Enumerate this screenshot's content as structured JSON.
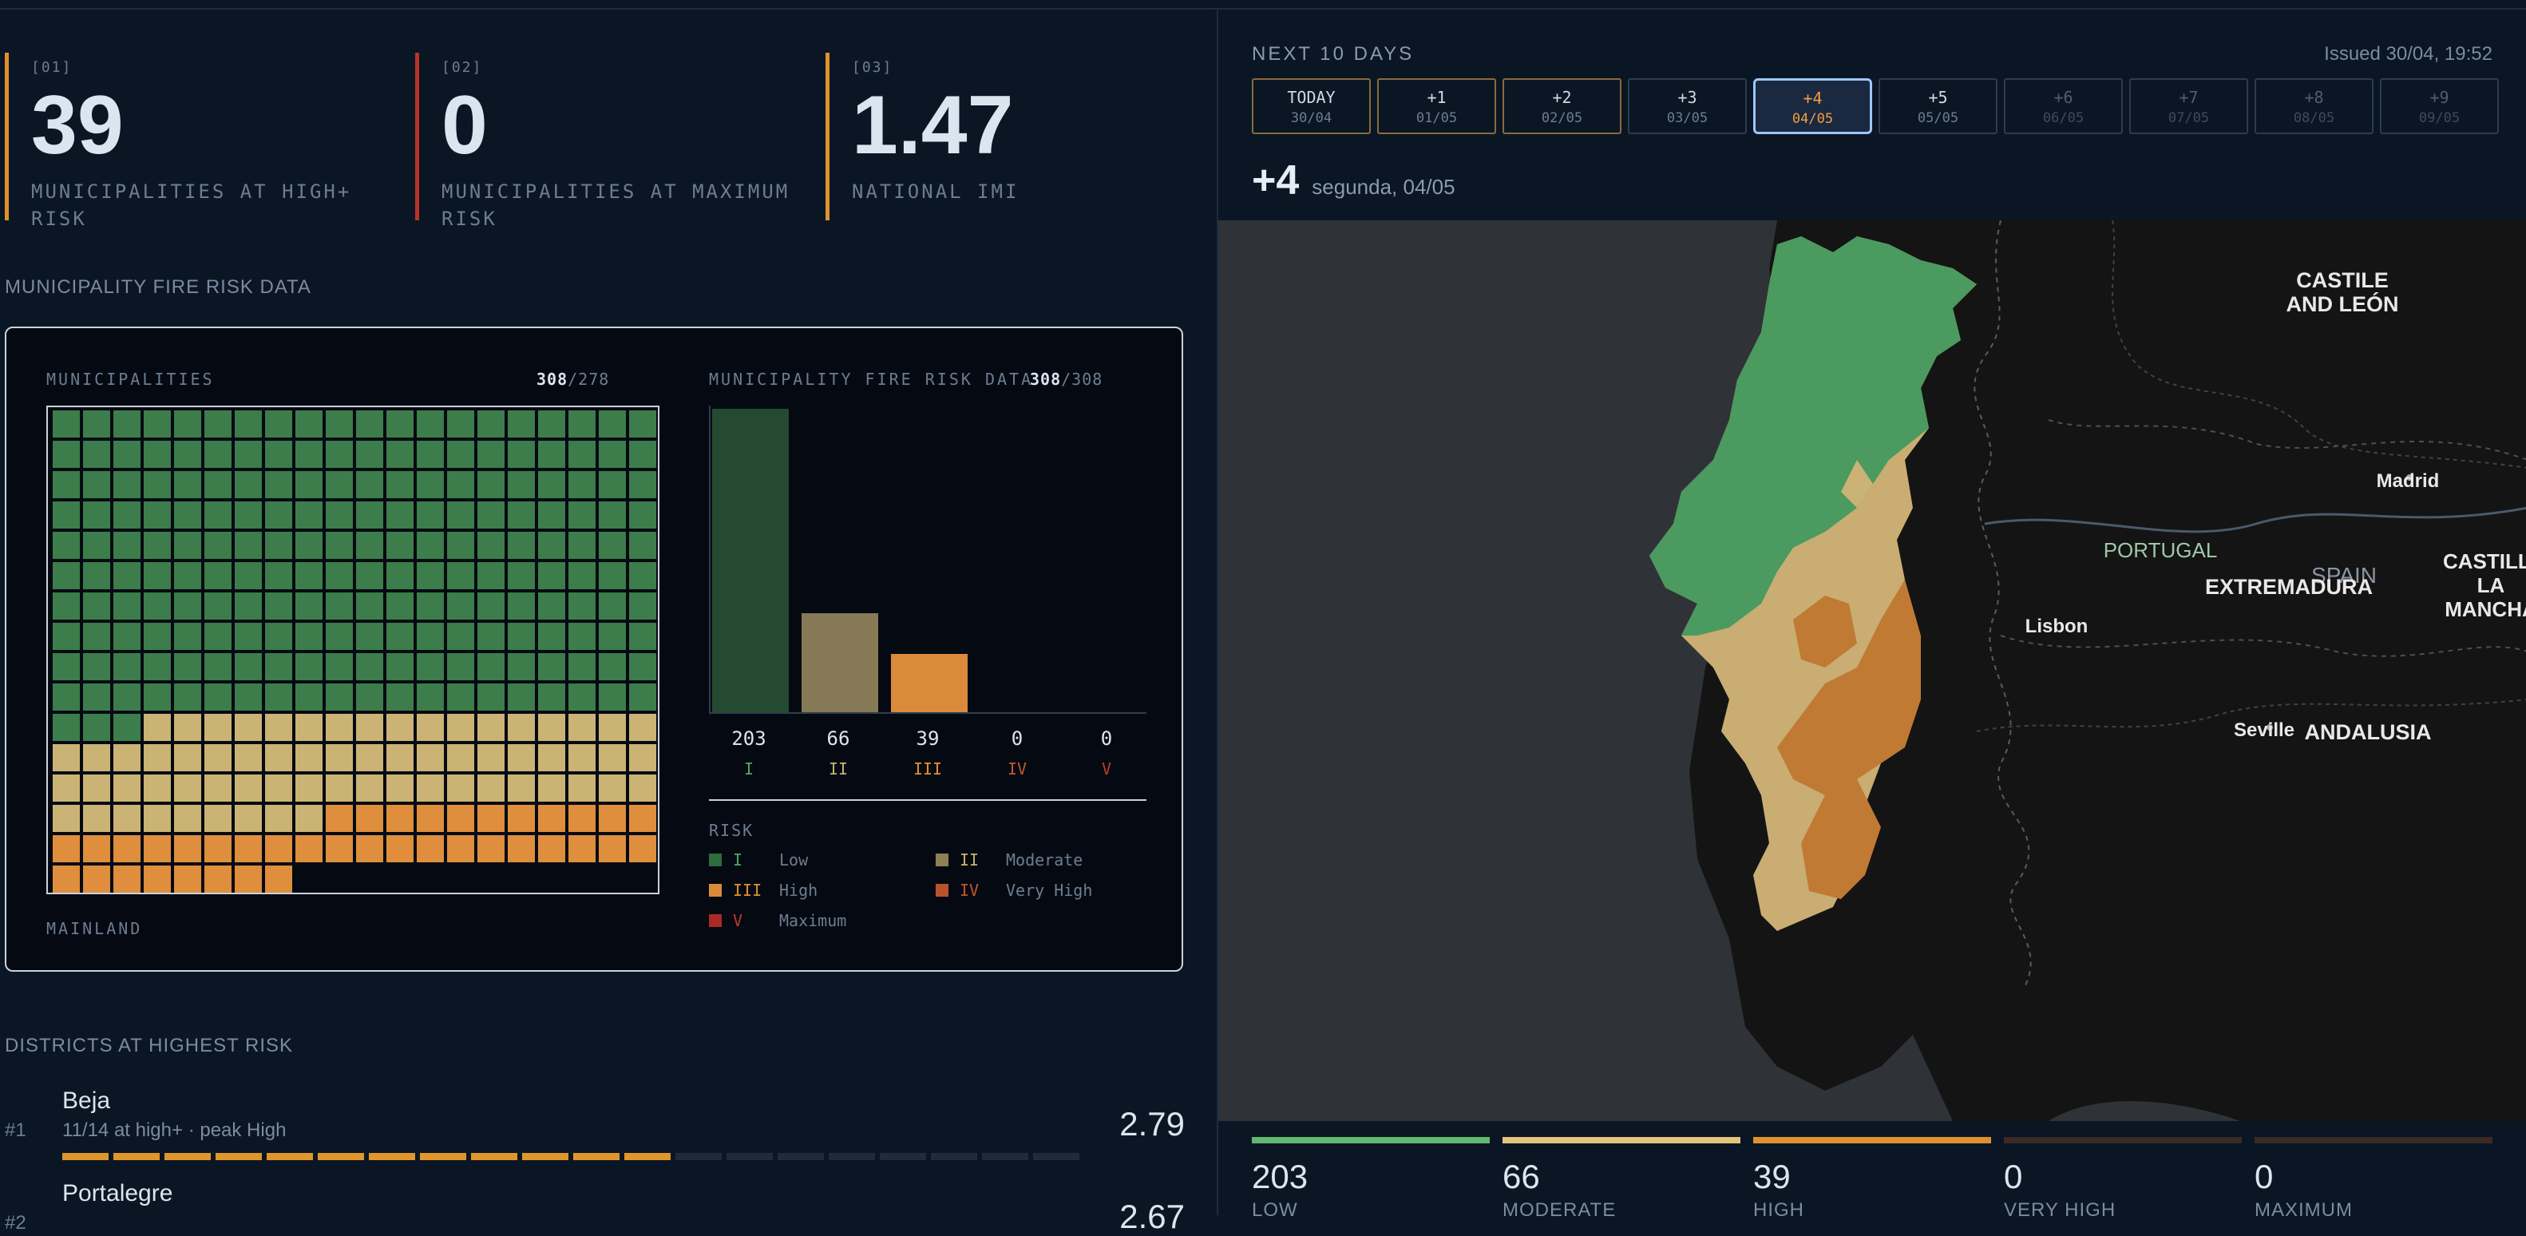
{
  "kpis": [
    {
      "num": "[01]",
      "value": "39",
      "label": "MUNICIPALITIES AT HIGH+ RISK",
      "accent": "#e0902f"
    },
    {
      "num": "[02]",
      "value": "0",
      "label": "MUNICIPALITIES AT MAXIMUM RISK",
      "accent": "#b8332a"
    },
    {
      "num": "[03]",
      "value": "1.47",
      "label": "NATIONAL IMI",
      "accent": "#e0902f"
    }
  ],
  "section_fire_risk": "MUNICIPALITY FIRE RISK DATA",
  "panel": {
    "left_title": "MUNICIPALITIES",
    "left_count_a": "308",
    "left_count_b": "/278",
    "left_footer": "MAINLAND",
    "right_title": "MUNICIPALITY FIRE RISK DATA",
    "right_count_a": "308",
    "right_count_b": "/308",
    "risk_title": "RISK",
    "waffle": {
      "counts": [
        203,
        66,
        39,
        0,
        0
      ],
      "colors": [
        "#3c7d4b",
        "#cbb375",
        "#de8e3c",
        "#c0552e",
        "#a92a25"
      ]
    },
    "legend": [
      {
        "roman": "I",
        "label": "Low",
        "color": "#2e6b3d"
      },
      {
        "roman": "II",
        "label": "Moderate",
        "color": "#8c8152"
      },
      {
        "roman": "III",
        "label": "High",
        "color": "#d98b3a"
      },
      {
        "roman": "IV",
        "label": "Very High",
        "color": "#b8542c"
      },
      {
        "roman": "V",
        "label": "Maximum",
        "color": "#a92a25"
      }
    ]
  },
  "chart_data": {
    "type": "bar",
    "categories": [
      "I",
      "II",
      "III",
      "IV",
      "V"
    ],
    "values": [
      203,
      66,
      39,
      0,
      0
    ],
    "value_labels": [
      "203",
      "66",
      "39",
      "0",
      "0"
    ],
    "colors": [
      "#244a32",
      "#857a55",
      "#d98b3a",
      "#b8542c",
      "#a92a25"
    ],
    "label_colors": [
      "#4fa866",
      "#c8b36a",
      "#e0902f",
      "#c0552e",
      "#c0392b"
    ],
    "ylim": [
      0,
      203
    ]
  },
  "section_districts": "DISTRICTS AT HIGHEST RISK",
  "districts": [
    {
      "rank": "#1",
      "name": "Beja",
      "sub": "11/14 at high+ · peak High",
      "value": "2.79",
      "fraction": 0.6
    },
    {
      "rank": "#2",
      "name": "Portalegre",
      "sub": "",
      "value": "2.67",
      "fraction": 0.55
    }
  ],
  "forecast": {
    "title": "NEXT 10 DAYS",
    "issued": "Issued 30/04, 19:52",
    "days": [
      {
        "label": "TODAY",
        "date": "30/04",
        "state": "gold"
      },
      {
        "label": "+1",
        "date": "01/05",
        "state": "gold"
      },
      {
        "label": "+2",
        "date": "02/05",
        "state": "gold"
      },
      {
        "label": "+3",
        "date": "03/05",
        "state": "normal"
      },
      {
        "label": "+4",
        "date": "04/05",
        "state": "selected"
      },
      {
        "label": "+5",
        "date": "05/05",
        "state": "normal"
      },
      {
        "label": "+6",
        "date": "06/05",
        "state": "dim"
      },
      {
        "label": "+7",
        "date": "07/05",
        "state": "dim"
      },
      {
        "label": "+8",
        "date": "08/05",
        "state": "dim"
      },
      {
        "label": "+9",
        "date": "09/05",
        "state": "dim"
      }
    ],
    "selected_label": "+4",
    "selected_date": "segunda, 04/05"
  },
  "map": {
    "labels": {
      "castile": "CASTILE AND LEÓN",
      "madrid": "Madrid",
      "portugal": "PORTUGAL",
      "spain": "SPAIN",
      "extremadura": "EXTREMADURA",
      "castilla_lm": "CASTILLA-LA MANCHA",
      "lisbon": "Lisbon",
      "seville": "Seville",
      "andalusia": "ANDALUSIA"
    }
  },
  "stats": [
    {
      "value": "203",
      "label": "LOW",
      "color": "#5fb96f"
    },
    {
      "value": "66",
      "label": "MODERATE",
      "color": "#e3c47a"
    },
    {
      "value": "39",
      "label": "HIGH",
      "color": "#e0902f"
    },
    {
      "value": "0",
      "label": "VERY HIGH",
      "color": "#3a2b25"
    },
    {
      "value": "0",
      "label": "MAXIMUM",
      "color": "#3a2b25"
    }
  ]
}
